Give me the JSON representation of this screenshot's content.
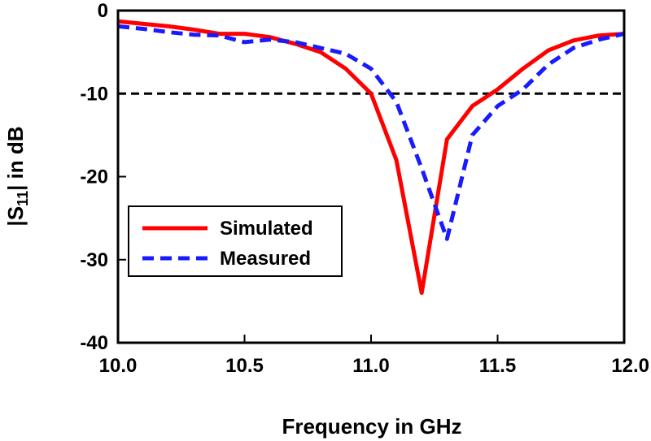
{
  "chart_data": {
    "type": "line",
    "xlabel": "Frequency in GHz",
    "ylabel_main": "|S",
    "ylabel_sub": "11",
    "ylabel_rest": "| in dB",
    "xlim": [
      10.0,
      12.0
    ],
    "ylim": [
      -40,
      0
    ],
    "xticks": [
      10.0,
      10.5,
      11.0,
      11.5,
      12.0
    ],
    "xtick_labels": [
      "10.0",
      "10.5",
      "11.0",
      "11.5",
      "12.0"
    ],
    "yticks": [
      0,
      -10,
      -20,
      -30,
      -40
    ],
    "ytick_labels": [
      "0",
      "-10",
      "-20",
      "-30",
      "-40"
    ],
    "grid": false,
    "legend_position": "lower-left",
    "reference_line": {
      "y": -10,
      "color": "#000000",
      "style": "dashed"
    },
    "series": [
      {
        "name": "Simulated",
        "color": "#ff0000",
        "style": "solid",
        "x": [
          10.0,
          10.1,
          10.2,
          10.3,
          10.4,
          10.5,
          10.6,
          10.7,
          10.8,
          10.9,
          11.0,
          11.1,
          11.2,
          11.3,
          11.4,
          11.5,
          11.6,
          11.7,
          11.8,
          11.9,
          12.0
        ],
        "y": [
          -1.3,
          -1.6,
          -1.9,
          -2.3,
          -2.8,
          -2.8,
          -3.2,
          -4.0,
          -5.0,
          -7.0,
          -10.0,
          -18.0,
          -34.0,
          -15.5,
          -11.5,
          -9.5,
          -7.0,
          -4.8,
          -3.6,
          -3.0,
          -2.8
        ]
      },
      {
        "name": "Measured",
        "color": "#1a1aff",
        "style": "dashed",
        "x": [
          10.0,
          10.1,
          10.2,
          10.3,
          10.4,
          10.5,
          10.6,
          10.7,
          10.8,
          10.9,
          11.0,
          11.1,
          11.2,
          11.3,
          11.4,
          11.5,
          11.6,
          11.7,
          11.8,
          11.9,
          12.0
        ],
        "y": [
          -1.9,
          -2.2,
          -2.6,
          -2.9,
          -3.0,
          -3.8,
          -3.5,
          -3.8,
          -4.5,
          -5.2,
          -7.0,
          -11.0,
          -19.0,
          -27.5,
          -15.0,
          -11.5,
          -9.5,
          -6.5,
          -4.5,
          -3.5,
          -2.8
        ]
      }
    ]
  }
}
